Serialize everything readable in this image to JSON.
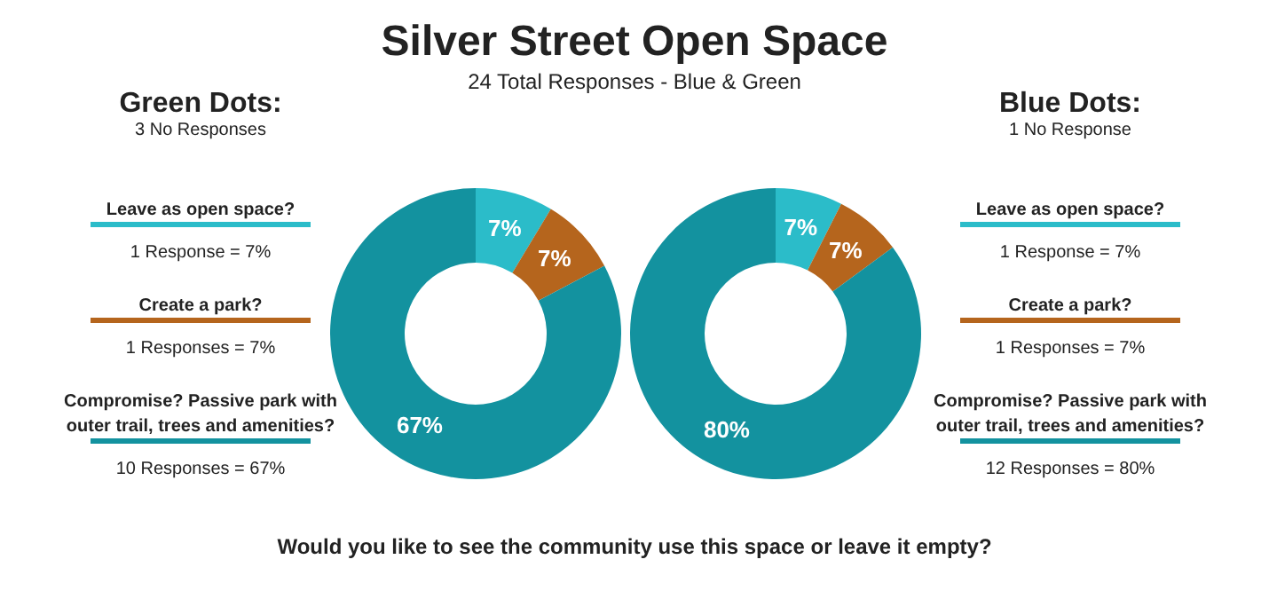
{
  "chart_data": [
    {
      "type": "other",
      "title": "Silver Street Open Space",
      "subtitle": "24 Total Responses - Blue & Green",
      "annotations": [
        "Would you like to see the community use this space or leave it empty?"
      ]
    },
    {
      "type": "donut",
      "title": "Green Dots:",
      "subtitle": "3 No Responses",
      "categories": [
        null,
        null,
        null
      ],
      "values": [
        7,
        7,
        67
      ],
      "colors": [
        "#2bbcc9",
        "#b5651d",
        "#13929f"
      ],
      "value_labels": [
        "7%",
        "7%",
        "67%"
      ],
      "annotations": [
        "Leave as open space?",
        "1 Response = 7%",
        "Create a park?",
        "1 Responses = 7%",
        "Compromise? Passive park with outer trail, trees and amenities?",
        "10 Responses = 67%"
      ]
    },
    {
      "type": "donut",
      "title": "Blue Dots:",
      "subtitle": "1 No Response",
      "categories": [
        null,
        null,
        null
      ],
      "values": [
        7,
        7,
        80
      ],
      "colors": [
        "#2bbcc9",
        "#b5651d",
        "#13929f"
      ],
      "value_labels": [
        "7%",
        "7%",
        "80%"
      ],
      "annotations": [
        "Leave as open space?",
        "1 Response = 7%",
        "Create a park?",
        "1 Responses = 7%",
        "Compromise? Passive park with outer trail, trees and amenities?",
        "12 Responses = 80%"
      ]
    }
  ]
}
